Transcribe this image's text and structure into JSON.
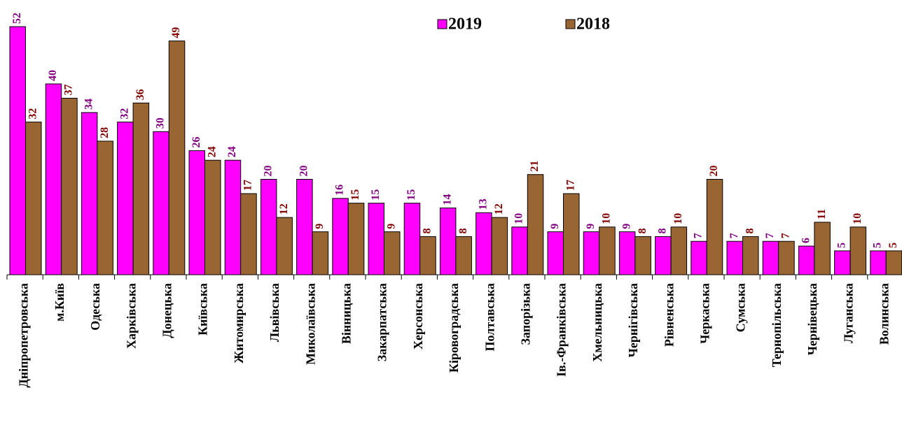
{
  "chart_data": {
    "type": "bar",
    "categories": [
      "Дніпропетровська",
      "м.Київ",
      "Одеська",
      "Харківська",
      "Донецька",
      "Київська",
      "Житомирська",
      "Львівська",
      "Миколаївська",
      "Вінницька",
      "Закарпатська",
      "Херсонська",
      "Кіровоградська",
      "Полтавська",
      "Запорізька",
      "Ів.-Франківська",
      "Хмельницька",
      "Чернігівська",
      "Рівненська",
      "Черкаська",
      "Сумська",
      "Тернопільська",
      "Чернівецька",
      "Луганська",
      "Волинська"
    ],
    "series": [
      {
        "name": "2019",
        "color": "#ff00ff",
        "label_color": "#800080",
        "values": [
          52,
          40,
          34,
          32,
          30,
          26,
          24,
          20,
          20,
          16,
          15,
          15,
          14,
          13,
          10,
          9,
          9,
          9,
          8,
          7,
          7,
          7,
          6,
          5,
          5
        ]
      },
      {
        "name": "2018",
        "color": "#996633",
        "label_color": "#800000",
        "values": [
          32,
          37,
          28,
          36,
          49,
          24,
          17,
          12,
          9,
          15,
          9,
          8,
          8,
          12,
          21,
          17,
          10,
          8,
          10,
          20,
          8,
          7,
          11,
          10,
          5
        ]
      }
    ],
    "ylim": [
      0,
      57
    ],
    "legend": "top",
    "grid": false
  }
}
